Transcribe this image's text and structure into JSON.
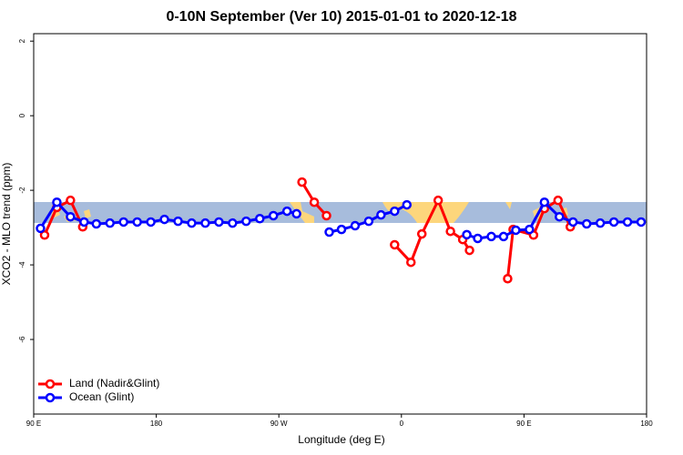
{
  "chart_data": {
    "type": "line",
    "title": "0-10N September (Ver 10)   2015-01-01 to 2020-12-18",
    "x_label": "Longitude (deg E)",
    "y_label": "XCO2 - MLO trend (ppm)",
    "xlim": [
      90,
      540
    ],
    "ylim": [
      -8,
      2.2
    ],
    "xticks": [
      {
        "value": 90,
        "label": "90 E"
      },
      180,
      {
        "value": 270,
        "label": "90 W"
      },
      {
        "value": 360,
        "label": "0"
      },
      {
        "value": 450,
        "label": "90 E"
      },
      {
        "value": 540,
        "label": "180"
      }
    ],
    "yticks": [
      2,
      0,
      -2,
      -4,
      -6
    ],
    "legend": "bottom-left",
    "series": [
      {
        "name": "Land (Nadir&Glint)",
        "color": "#ff0000",
        "x": [
          98,
          107,
          117,
          126,
          null,
          287,
          296,
          305,
          null,
          355,
          367,
          375,
          387,
          396,
          405,
          410,
          null,
          438,
          442,
          457,
          465,
          475,
          484
        ],
        "values": [
          -3.2,
          -2.46,
          -2.27,
          -2.98,
          null,
          -1.78,
          -2.32,
          -2.68,
          null,
          -3.46,
          -3.93,
          -3.17,
          -2.27,
          -3.1,
          -3.32,
          -3.61,
          null,
          -4.37,
          -3.05,
          -3.2,
          -2.49,
          -2.27,
          -2.98
        ]
      },
      {
        "name": "Ocean (Glint)",
        "color": "#0000ff",
        "x": [
          95,
          107,
          117,
          127,
          136,
          146,
          156,
          166,
          176,
          186,
          196,
          206,
          216,
          226,
          236,
          246,
          256,
          266,
          276,
          283,
          null,
          307,
          316,
          326,
          336,
          345,
          355,
          364,
          null,
          408,
          416,
          426,
          435,
          444,
          454,
          465,
          476,
          486,
          496,
          506,
          516,
          526,
          536
        ],
        "values": [
          -3.02,
          -2.32,
          -2.71,
          -2.85,
          -2.9,
          -2.88,
          -2.85,
          -2.85,
          -2.85,
          -2.78,
          -2.83,
          -2.88,
          -2.88,
          -2.85,
          -2.88,
          -2.83,
          -2.76,
          -2.68,
          -2.56,
          -2.63,
          null,
          -3.12,
          -3.05,
          -2.95,
          -2.83,
          -2.66,
          -2.56,
          -2.39,
          null,
          -3.19,
          -3.29,
          -3.24,
          -3.24,
          -3.07,
          -3.05,
          -2.32,
          -2.71,
          -2.85,
          -2.9,
          -2.88,
          -2.85,
          -2.85,
          -2.85
        ]
      }
    ]
  }
}
